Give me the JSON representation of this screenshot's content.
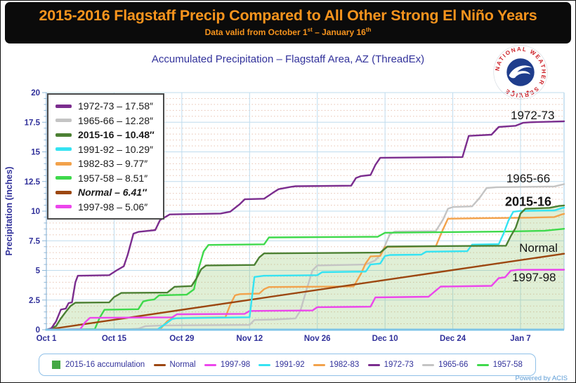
{
  "header": {
    "title": "2015-2016 Flagstaff Precip Compared to All Other Strong El Niño Years",
    "valid_pre": "Data valid from October 1",
    "valid_sup1": "st",
    "valid_mid": " – January 16",
    "valid_sup2": "th"
  },
  "chart_subtitle": "Accumulated Precipitation – Flagstaff Area, AZ (ThreadEx)",
  "logo": {
    "ring_text": "NATIONAL WEATHER SERVICE"
  },
  "powered_by": "Powered by ACIS",
  "colors": {
    "axis_text": "#30309a",
    "grid_major": "#bfdcee",
    "grid_minor": "#e8c3b2",
    "axis_line": "#8fb8d8",
    "baseline": "#7ec4e8",
    "fill_2015": "rgba(143,197,107,0.28)"
  },
  "legend_box": {
    "rows": [
      {
        "label": "1972-73 –  17.58″",
        "color": "#7b2d8e",
        "style": "normal"
      },
      {
        "label": "1965-66 –  12.28″",
        "color": "#c4c4c4",
        "style": "normal"
      },
      {
        "label": "2015-16 – 10.48″",
        "color": "#4c8033",
        "style": "bold"
      },
      {
        "label": "1991-92 –  10.29″",
        "color": "#35e3f2",
        "style": "normal"
      },
      {
        "label": "1982-83 –  9.77″",
        "color": "#f2a24b",
        "style": "normal"
      },
      {
        "label": "1957-58 –  8.51″",
        "color": "#3fd94c",
        "style": "normal"
      },
      {
        "label": "Normal  –  6.41″",
        "color": "#9c4711",
        "style": "italic"
      },
      {
        "label": "1997-98 –  5.06″",
        "color": "#ec46ec",
        "style": "normal"
      }
    ]
  },
  "bottom_legend": {
    "items": [
      {
        "label": "2015-16 accumulation",
        "swatch": "square",
        "color": "#45a845"
      },
      {
        "label": "Normal",
        "swatch": "line",
        "color": "#9c4711"
      },
      {
        "label": "1997-98",
        "swatch": "line",
        "color": "#ec46ec"
      },
      {
        "label": "1991-92",
        "swatch": "line",
        "color": "#35e3f2"
      },
      {
        "label": "1982-83",
        "swatch": "line",
        "color": "#f2a24b"
      },
      {
        "label": "1972-73",
        "swatch": "line",
        "color": "#7b2d8e"
      },
      {
        "label": "1965-66",
        "swatch": "line",
        "color": "#c4c4c4"
      },
      {
        "label": "1957-58",
        "swatch": "line",
        "color": "#3fd94c"
      }
    ]
  },
  "chart_data": {
    "type": "line",
    "title": "Accumulated Precipitation – Flagstaff Area, AZ (ThreadEx)",
    "xlabel": "",
    "ylabel": "Precipitation (inches)",
    "ylim": [
      0,
      20
    ],
    "y_major_step": 2.5,
    "y_minor_step": 0.5,
    "x_days_total": 107,
    "x_ticks": [
      {
        "label": "Oct 1",
        "day": 0
      },
      {
        "label": "Oct 15",
        "day": 14
      },
      {
        "label": "Oct 29",
        "day": 28
      },
      {
        "label": "Nov 12",
        "day": 42
      },
      {
        "label": "Nov 26",
        "day": 56
      },
      {
        "label": "Dec 10",
        "day": 70
      },
      {
        "label": "Dec 24",
        "day": 84
      },
      {
        "label": "Jan 7",
        "day": 98
      }
    ],
    "y_ticks": [
      "0",
      "2.5",
      "5",
      "7.5",
      "10",
      "12.5",
      "15",
      "17.5",
      "20"
    ],
    "annotations": [
      {
        "text": "1972-73",
        "day": 100.5,
        "value": 18.05,
        "bold": false
      },
      {
        "text": "1965-66",
        "day": 99.6,
        "value": 12.72,
        "bold": false
      },
      {
        "text": "2015-16",
        "day": 99.6,
        "value": 10.77,
        "bold": true
      },
      {
        "text": "Normal",
        "day": 101.7,
        "value": 6.86,
        "bold": false
      },
      {
        "text": "1997-98",
        "day": 100.8,
        "value": 4.38,
        "bold": false
      }
    ],
    "series": [
      {
        "name": "1965-66",
        "total_inches": 12.28,
        "color": "#c4c4c4",
        "fill": false,
        "points": [
          [
            0,
            0
          ],
          [
            17,
            0.04
          ],
          [
            19,
            0.08
          ],
          [
            20.5,
            0.3
          ],
          [
            24,
            0.36
          ],
          [
            42,
            0.4
          ],
          [
            43,
            0.82
          ],
          [
            47,
            0.86
          ],
          [
            51.5,
            0.95
          ],
          [
            52.5,
            1.6
          ],
          [
            53.5,
            3.0
          ],
          [
            55,
            5.0
          ],
          [
            56,
            5.42
          ],
          [
            66,
            5.5
          ],
          [
            68,
            5.85
          ],
          [
            69,
            6.3
          ],
          [
            70,
            7.1
          ],
          [
            71,
            8.05
          ],
          [
            72,
            8.28
          ],
          [
            80.5,
            8.32
          ],
          [
            82,
            9.3
          ],
          [
            83,
            10.2
          ],
          [
            84,
            10.35
          ],
          [
            88,
            10.4
          ],
          [
            89.5,
            11.1
          ],
          [
            91,
            11.95
          ],
          [
            93,
            12.02
          ],
          [
            105,
            12.08
          ],
          [
            107,
            12.28
          ]
        ]
      },
      {
        "name": "1982-83",
        "total_inches": 9.77,
        "color": "#f2a24b",
        "fill": false,
        "points": [
          [
            0,
            0
          ],
          [
            23.5,
            0.04
          ],
          [
            25,
            0.72
          ],
          [
            26,
            0.95
          ],
          [
            30,
            1.0
          ],
          [
            37,
            1.05
          ],
          [
            38,
            2.1
          ],
          [
            39,
            2.9
          ],
          [
            40,
            3.0
          ],
          [
            44,
            3.05
          ],
          [
            45,
            3.42
          ],
          [
            46,
            3.6
          ],
          [
            63.5,
            3.65
          ],
          [
            65,
            4.7
          ],
          [
            66,
            5.6
          ],
          [
            67,
            6.18
          ],
          [
            69,
            6.22
          ],
          [
            70,
            6.98
          ],
          [
            80.5,
            7.04
          ],
          [
            81.8,
            8.3
          ],
          [
            83,
            9.36
          ],
          [
            90,
            9.4
          ],
          [
            100,
            9.45
          ],
          [
            105,
            9.5
          ],
          [
            106.5,
            9.72
          ],
          [
            107,
            9.77
          ]
        ]
      },
      {
        "name": "1957-58",
        "total_inches": 8.51,
        "color": "#3fd94c",
        "fill": false,
        "points": [
          [
            0,
            0
          ],
          [
            10,
            0.04
          ],
          [
            11,
            1.0
          ],
          [
            12,
            1.68
          ],
          [
            19,
            1.73
          ],
          [
            20,
            2.38
          ],
          [
            21,
            2.48
          ],
          [
            22.3,
            2.55
          ],
          [
            23.3,
            2.9
          ],
          [
            29,
            2.95
          ],
          [
            30.5,
            3.4
          ],
          [
            31.5,
            5.2
          ],
          [
            32.5,
            6.6
          ],
          [
            33.5,
            7.15
          ],
          [
            45,
            7.2
          ],
          [
            46,
            7.78
          ],
          [
            68.5,
            7.84
          ],
          [
            70,
            8.18
          ],
          [
            95,
            8.28
          ],
          [
            103,
            8.35
          ],
          [
            107,
            8.51
          ]
        ]
      },
      {
        "name": "Normal",
        "total_inches": 6.41,
        "color": "#9c4711",
        "fill": false,
        "points": [
          [
            0,
            0
          ],
          [
            107,
            6.41
          ]
        ]
      },
      {
        "name": "1997-98",
        "total_inches": 5.06,
        "color": "#ec46ec",
        "fill": false,
        "points": [
          [
            0,
            0
          ],
          [
            7,
            0.04
          ],
          [
            8,
            0.62
          ],
          [
            9,
            1.0
          ],
          [
            26,
            1.04
          ],
          [
            27,
            1.3
          ],
          [
            41,
            1.34
          ],
          [
            42,
            1.58
          ],
          [
            55,
            1.62
          ],
          [
            56,
            1.9
          ],
          [
            67,
            1.94
          ],
          [
            68,
            2.72
          ],
          [
            79,
            2.78
          ],
          [
            80.5,
            3.3
          ],
          [
            81.5,
            3.64
          ],
          [
            92,
            3.7
          ],
          [
            93.5,
            4.35
          ],
          [
            94.8,
            4.42
          ],
          [
            96,
            4.98
          ],
          [
            97.5,
            5.05
          ],
          [
            107,
            5.06
          ]
        ]
      },
      {
        "name": "1991-92",
        "total_inches": 10.29,
        "color": "#35e3f2",
        "fill": false,
        "points": [
          [
            0,
            0
          ],
          [
            23,
            0.03
          ],
          [
            24.5,
            0.45
          ],
          [
            26,
            0.9
          ],
          [
            27,
            0.97
          ],
          [
            42,
            1.05
          ],
          [
            43,
            4.45
          ],
          [
            45,
            4.55
          ],
          [
            56,
            4.6
          ],
          [
            57,
            4.85
          ],
          [
            66,
            4.9
          ],
          [
            67,
            5.5
          ],
          [
            69,
            5.58
          ],
          [
            70,
            6.22
          ],
          [
            71,
            6.3
          ],
          [
            77.5,
            6.33
          ],
          [
            78.5,
            6.58
          ],
          [
            87,
            6.62
          ],
          [
            88,
            7.18
          ],
          [
            93.5,
            7.22
          ],
          [
            94.5,
            8.1
          ],
          [
            95.5,
            9.2
          ],
          [
            96.5,
            9.95
          ],
          [
            98,
            10.02
          ],
          [
            105,
            10.06
          ],
          [
            106.5,
            10.25
          ],
          [
            107,
            10.29
          ]
        ]
      },
      {
        "name": "2015-16",
        "total_inches": 10.48,
        "color": "#4c8033",
        "fill": true,
        "points": [
          [
            0,
            0
          ],
          [
            1,
            0.12
          ],
          [
            2,
            0.3
          ],
          [
            3,
            0.95
          ],
          [
            4,
            1.5
          ],
          [
            5,
            2.0
          ],
          [
            6,
            2.28
          ],
          [
            13,
            2.3
          ],
          [
            14,
            2.75
          ],
          [
            15.5,
            3.1
          ],
          [
            25,
            3.13
          ],
          [
            26.5,
            3.62
          ],
          [
            30,
            3.68
          ],
          [
            31,
            4.3
          ],
          [
            32,
            5.1
          ],
          [
            33,
            5.42
          ],
          [
            43,
            5.46
          ],
          [
            44,
            6.1
          ],
          [
            45,
            6.44
          ],
          [
            69,
            6.5
          ],
          [
            70.5,
            7.02
          ],
          [
            95,
            7.08
          ],
          [
            96,
            7.9
          ],
          [
            97,
            8.6
          ],
          [
            98,
            9.8
          ],
          [
            99,
            10.2
          ],
          [
            104,
            10.28
          ],
          [
            106,
            10.44
          ],
          [
            107,
            10.48
          ]
        ]
      },
      {
        "name": "1972-73",
        "total_inches": 17.58,
        "color": "#7b2d8e",
        "fill": false,
        "points": [
          [
            0,
            0
          ],
          [
            1,
            0.1
          ],
          [
            2,
            0.7
          ],
          [
            3,
            1.7
          ],
          [
            4,
            1.78
          ],
          [
            4.6,
            2.25
          ],
          [
            5.3,
            2.3
          ],
          [
            6,
            4.0
          ],
          [
            6.5,
            4.55
          ],
          [
            13,
            4.6
          ],
          [
            14.5,
            5.0
          ],
          [
            16,
            5.35
          ],
          [
            16.8,
            6.3
          ],
          [
            18,
            8.1
          ],
          [
            19,
            8.25
          ],
          [
            22.5,
            8.4
          ],
          [
            23.5,
            9.25
          ],
          [
            25.5,
            9.72
          ],
          [
            36,
            9.8
          ],
          [
            38,
            9.95
          ],
          [
            40,
            10.6
          ],
          [
            41,
            11.0
          ],
          [
            45,
            11.05
          ],
          [
            47,
            11.6
          ],
          [
            48,
            11.85
          ],
          [
            50.5,
            12.05
          ],
          [
            51.5,
            12.1
          ],
          [
            63,
            12.15
          ],
          [
            64,
            12.8
          ],
          [
            65,
            12.95
          ],
          [
            67,
            13.05
          ],
          [
            68,
            13.9
          ],
          [
            69,
            14.5
          ],
          [
            86,
            14.56
          ],
          [
            87.3,
            16.35
          ],
          [
            92,
            16.45
          ],
          [
            93.5,
            17.1
          ],
          [
            97,
            17.2
          ],
          [
            98.5,
            17.45
          ],
          [
            100,
            17.5
          ],
          [
            107,
            17.58
          ]
        ]
      }
    ],
    "legend_position": "top-left",
    "grid": true
  }
}
